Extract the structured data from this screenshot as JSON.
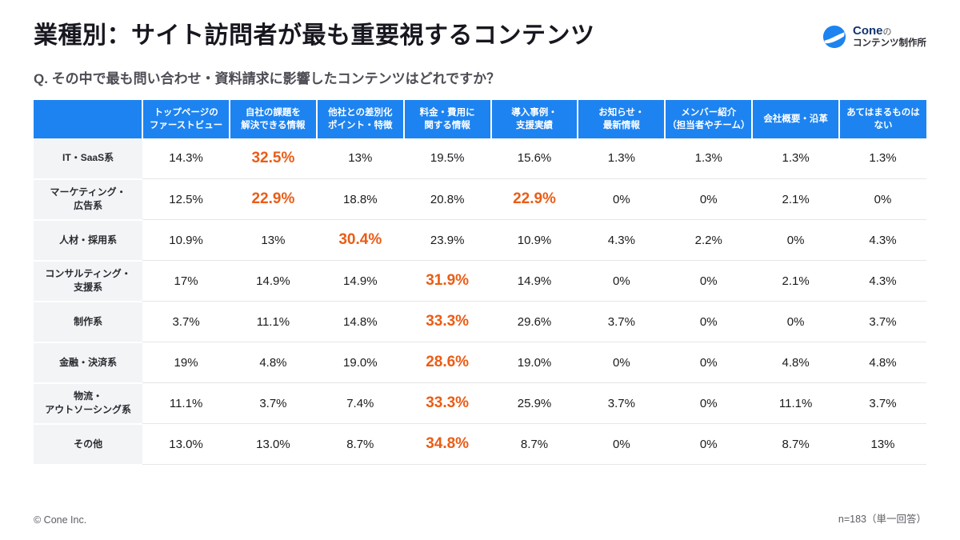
{
  "page": {
    "title": "業種別：サイト訪問者が最も重要視するコンテンツ",
    "question": "Q. その中で最も問い合わせ・資料請求に影響したコンテンツはどれですか？",
    "footer_left": "© Cone Inc.",
    "footer_right": "n=183（単一回答）"
  },
  "logo": {
    "brand": "Cone",
    "brand_suffix": "の",
    "subtitle": "コンテンツ制作所"
  },
  "colors": {
    "header_bg": "#1d83f0",
    "highlight_orange": "#ea5d16",
    "row_label_bg": "#f3f4f6"
  },
  "chart_data": {
    "type": "table",
    "title": "業種別：サイト訪問者が最も重要視するコンテンツ",
    "columns": [
      "トップページの\nファーストビュー",
      "自社の課題を\n解決できる情報",
      "他社との差別化\nポイント・特徴",
      "料金・費用に\n関する情報",
      "導入事例・\n支援実績",
      "お知らせ・\n最新情報",
      "メンバー紹介\n（担当者やチーム）",
      "会社概要・沿革",
      "あてはまるものは\nない"
    ],
    "rows": [
      {
        "label": "IT・SaaS系",
        "values": [
          "14.3%",
          "32.5%",
          "13%",
          "19.5%",
          "15.6%",
          "1.3%",
          "1.3%",
          "1.3%",
          "1.3%"
        ],
        "highlights": [
          1
        ]
      },
      {
        "label": "マーケティング・\n広告系",
        "values": [
          "12.5%",
          "22.9%",
          "18.8%",
          "20.8%",
          "22.9%",
          "0%",
          "0%",
          "2.1%",
          "0%"
        ],
        "highlights": [
          1,
          4
        ]
      },
      {
        "label": "人材・採用系",
        "values": [
          "10.9%",
          "13%",
          "30.4%",
          "23.9%",
          "10.9%",
          "4.3%",
          "2.2%",
          "0%",
          "4.3%"
        ],
        "highlights": [
          2
        ]
      },
      {
        "label": "コンサルティング・\n支援系",
        "values": [
          "17%",
          "14.9%",
          "14.9%",
          "31.9%",
          "14.9%",
          "0%",
          "0%",
          "2.1%",
          "4.3%"
        ],
        "highlights": [
          3
        ]
      },
      {
        "label": "制作系",
        "values": [
          "3.7%",
          "11.1%",
          "14.8%",
          "33.3%",
          "29.6%",
          "3.7%",
          "0%",
          "0%",
          "3.7%"
        ],
        "highlights": [
          3
        ]
      },
      {
        "label": "金融・決済系",
        "values": [
          "19%",
          "4.8%",
          "19.0%",
          "28.6%",
          "19.0%",
          "0%",
          "0%",
          "4.8%",
          "4.8%"
        ],
        "highlights": [
          3
        ]
      },
      {
        "label": "物流・\nアウトソーシング系",
        "values": [
          "11.1%",
          "3.7%",
          "7.4%",
          "33.3%",
          "25.9%",
          "3.7%",
          "0%",
          "11.1%",
          "3.7%"
        ],
        "highlights": [
          3
        ]
      },
      {
        "label": "その他",
        "values": [
          "13.0%",
          "13.0%",
          "8.7%",
          "34.8%",
          "8.7%",
          "0%",
          "0%",
          "8.7%",
          "13%"
        ],
        "highlights": [
          3
        ]
      }
    ],
    "n_note": "n=183（単一回答）"
  }
}
